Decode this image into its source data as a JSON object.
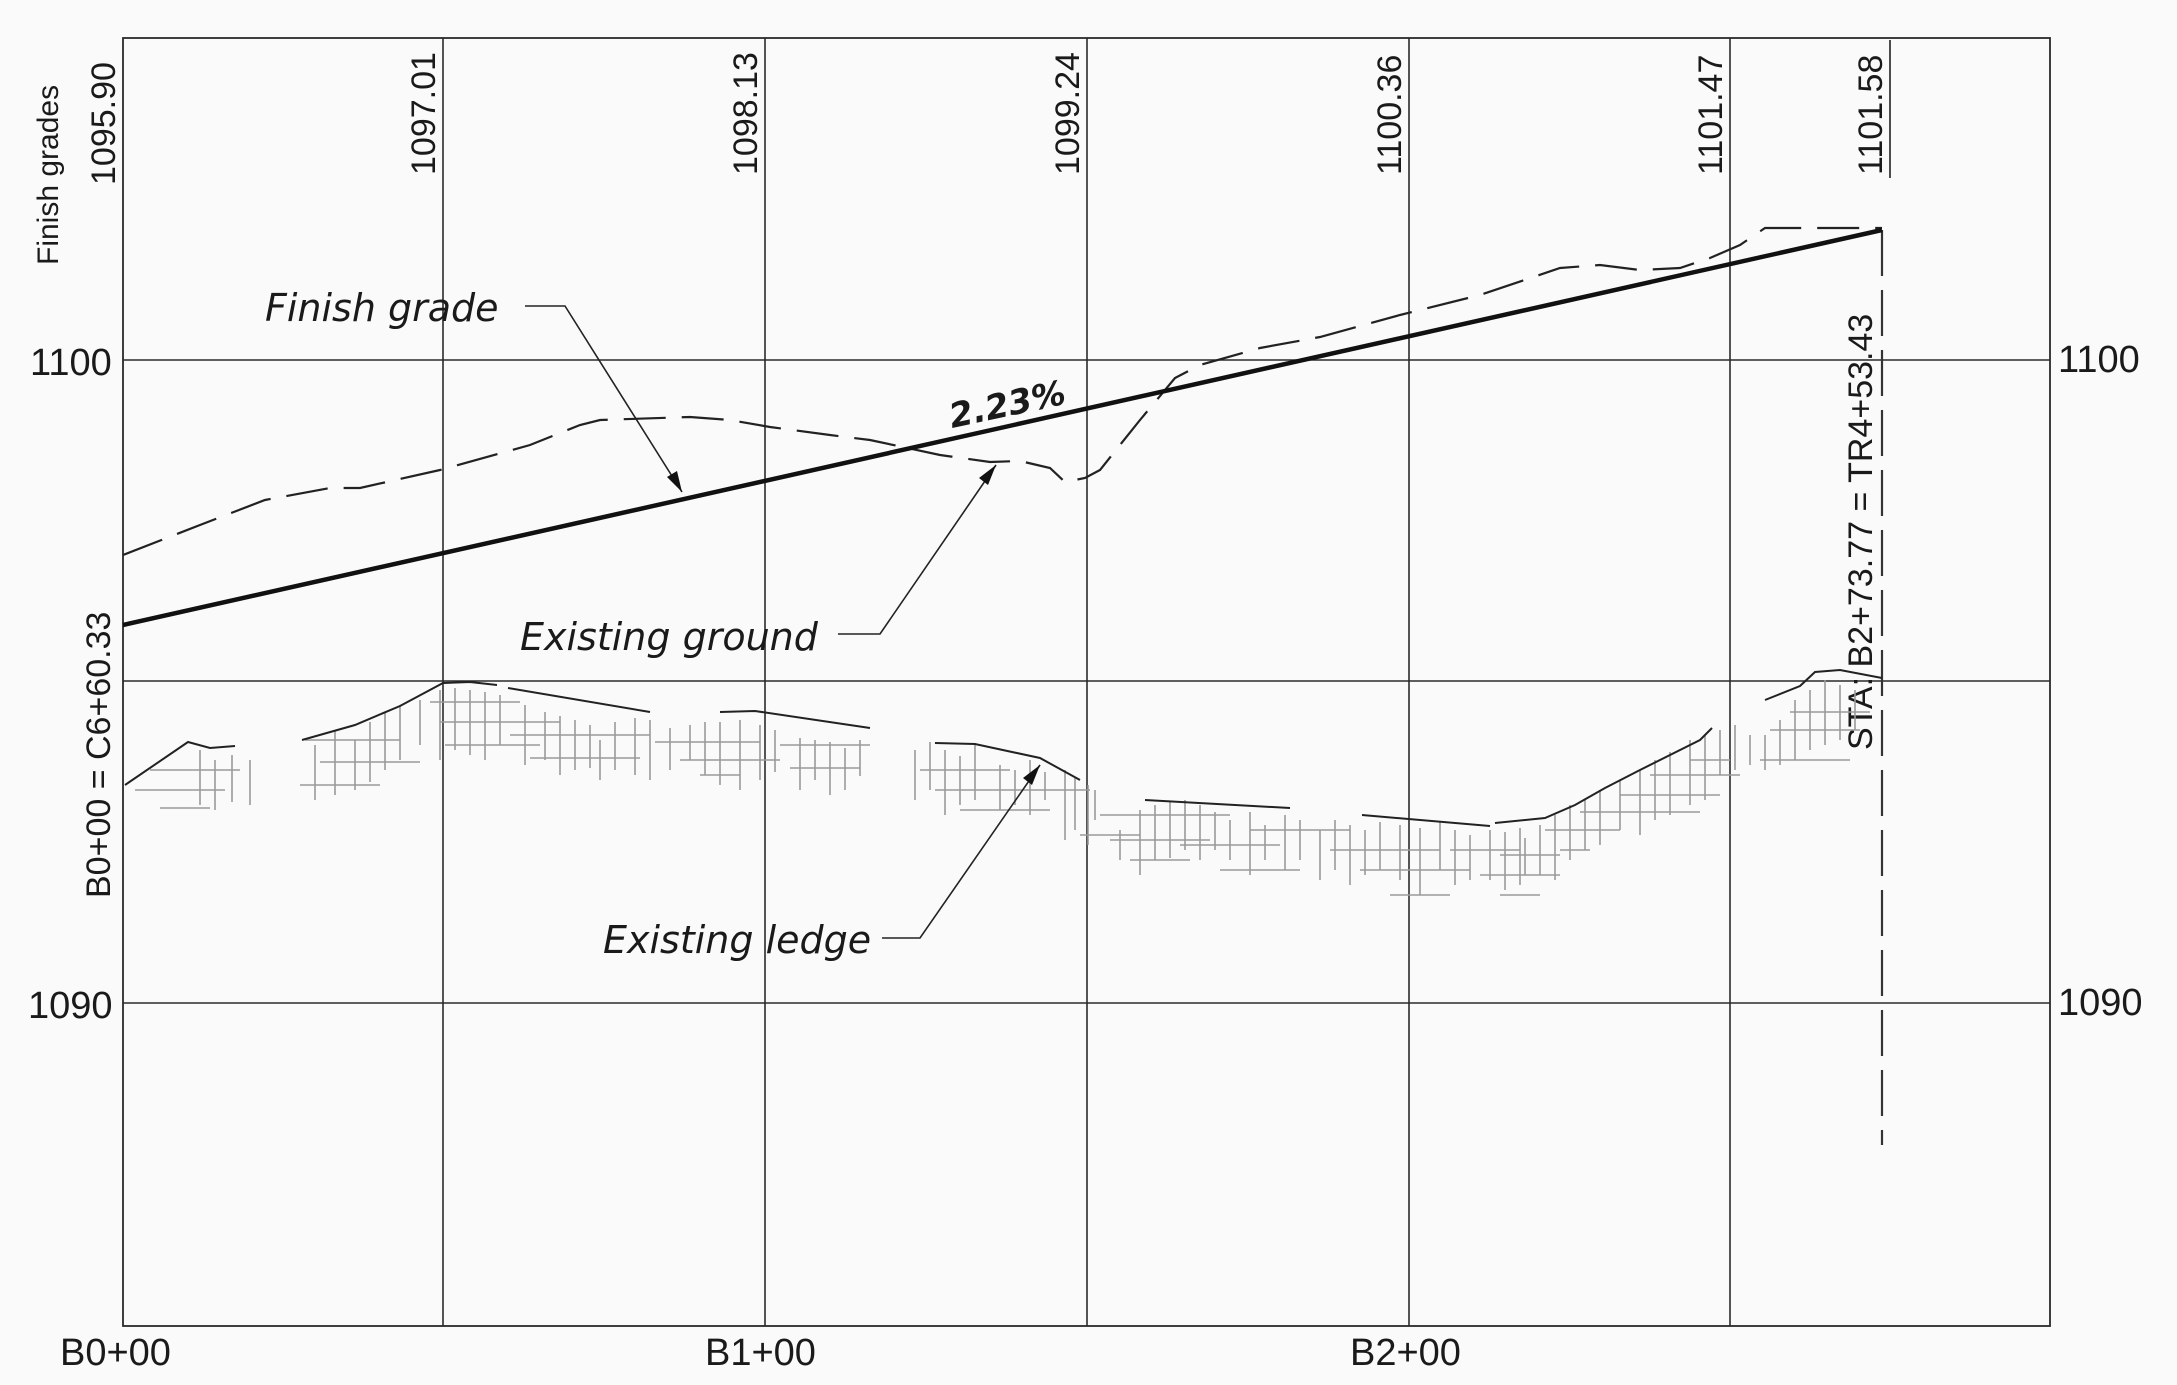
{
  "labels": {
    "finish_grades_header": "Finish grades",
    "finish_grade": "Finish grade",
    "existing_ground": "Existing ground",
    "existing_ledge": "Existing ledge",
    "slope": "2.23%",
    "start_station": "B0+00 = C6+60.33",
    "end_station": "STA: B2+73.77 = TR4+53.43"
  },
  "elevations": {
    "left": [
      "1100",
      "1090"
    ],
    "right": [
      "1100",
      "1090"
    ]
  },
  "stations": [
    "B0+00",
    "B1+00",
    "B2+00"
  ],
  "finish_grades": [
    "1095.90",
    "1097.01",
    "1098.13",
    "1099.24",
    "1100.36",
    "1101.47",
    "1101.58"
  ],
  "colors": {
    "ink": "#1a1a1a",
    "hatch": "#9a9a9a",
    "paper": "#fafafa"
  }
}
